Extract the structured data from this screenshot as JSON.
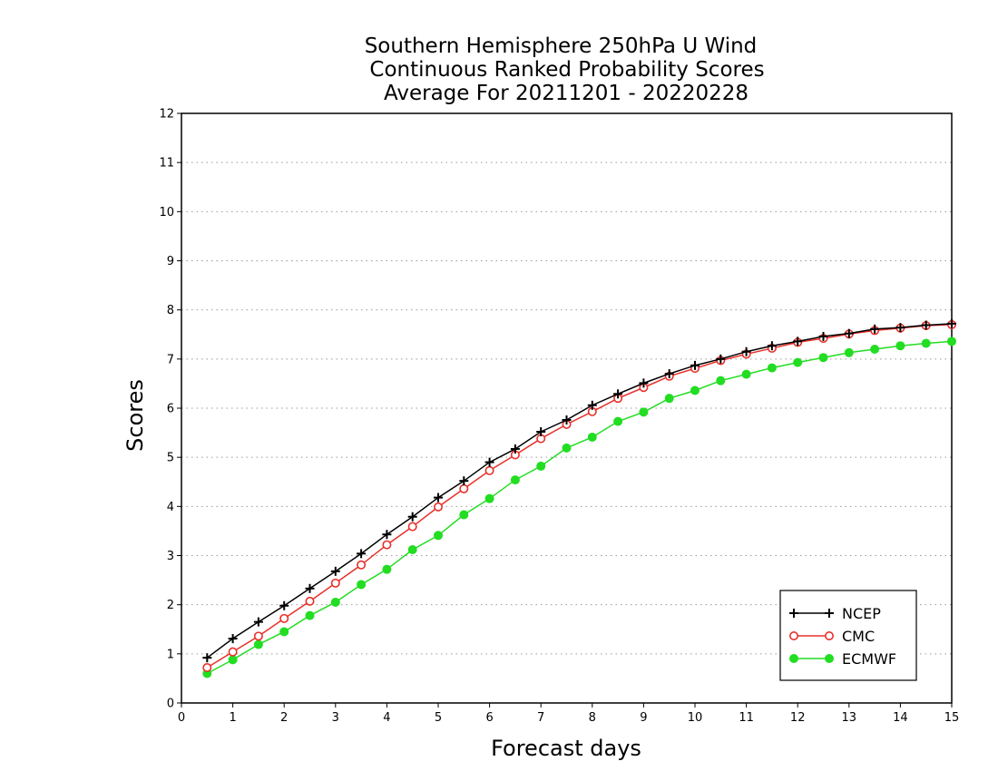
{
  "chart_data": {
    "type": "line",
    "title": [
      "Southern Hemisphere 250hPa U Wind",
      "Continuous Ranked Probability Scores",
      "Average For 20211201 - 20220228"
    ],
    "xlabel": "Forecast days",
    "ylabel": "Scores",
    "xlim": [
      0,
      15
    ],
    "ylim": [
      0,
      12
    ],
    "xticks": [
      "0",
      "1",
      "2",
      "3",
      "4",
      "5",
      "6",
      "7",
      "8",
      "9",
      "10",
      "11",
      "12",
      "13",
      "14",
      "15"
    ],
    "yticks": [
      "0",
      "1",
      "2",
      "3",
      "4",
      "5",
      "6",
      "7",
      "8",
      "9",
      "10",
      "11",
      "12"
    ],
    "grid": true,
    "legend_position": "bottom-right",
    "x": [
      0.5,
      1,
      1.5,
      2,
      2.5,
      3,
      3.5,
      4,
      4.5,
      5,
      5.5,
      6,
      6.5,
      7,
      7.5,
      8,
      8.5,
      9,
      9.5,
      10,
      10.5,
      11,
      11.5,
      12,
      12.5,
      13,
      13.5,
      14,
      14.5,
      15
    ],
    "series": [
      {
        "name": "NCEP",
        "color": "#000000",
        "marker": "plus",
        "values": [
          0.92,
          1.31,
          1.65,
          1.98,
          2.33,
          2.68,
          3.04,
          3.43,
          3.79,
          4.18,
          4.52,
          4.9,
          5.17,
          5.52,
          5.76,
          6.06,
          6.29,
          6.51,
          6.7,
          6.87,
          7.0,
          7.15,
          7.27,
          7.36,
          7.46,
          7.52,
          7.61,
          7.64,
          7.69,
          7.72
        ]
      },
      {
        "name": "CMC",
        "color": "#e8302a",
        "marker": "open-circle",
        "values": [
          0.72,
          1.04,
          1.36,
          1.72,
          2.07,
          2.44,
          2.81,
          3.22,
          3.59,
          3.99,
          4.36,
          4.73,
          5.05,
          5.38,
          5.67,
          5.93,
          6.2,
          6.42,
          6.65,
          6.81,
          6.97,
          7.1,
          7.22,
          7.34,
          7.42,
          7.51,
          7.58,
          7.63,
          7.68,
          7.7
        ]
      },
      {
        "name": "ECMWF",
        "color": "#22dd22",
        "marker": "filled-circle",
        "values": [
          0.6,
          0.88,
          1.19,
          1.45,
          1.78,
          2.05,
          2.41,
          2.72,
          3.12,
          3.41,
          3.83,
          4.16,
          4.54,
          4.82,
          5.19,
          5.41,
          5.73,
          5.92,
          6.2,
          6.36,
          6.56,
          6.69,
          6.82,
          6.93,
          7.03,
          7.13,
          7.2,
          7.27,
          7.32,
          7.36
        ]
      }
    ]
  }
}
